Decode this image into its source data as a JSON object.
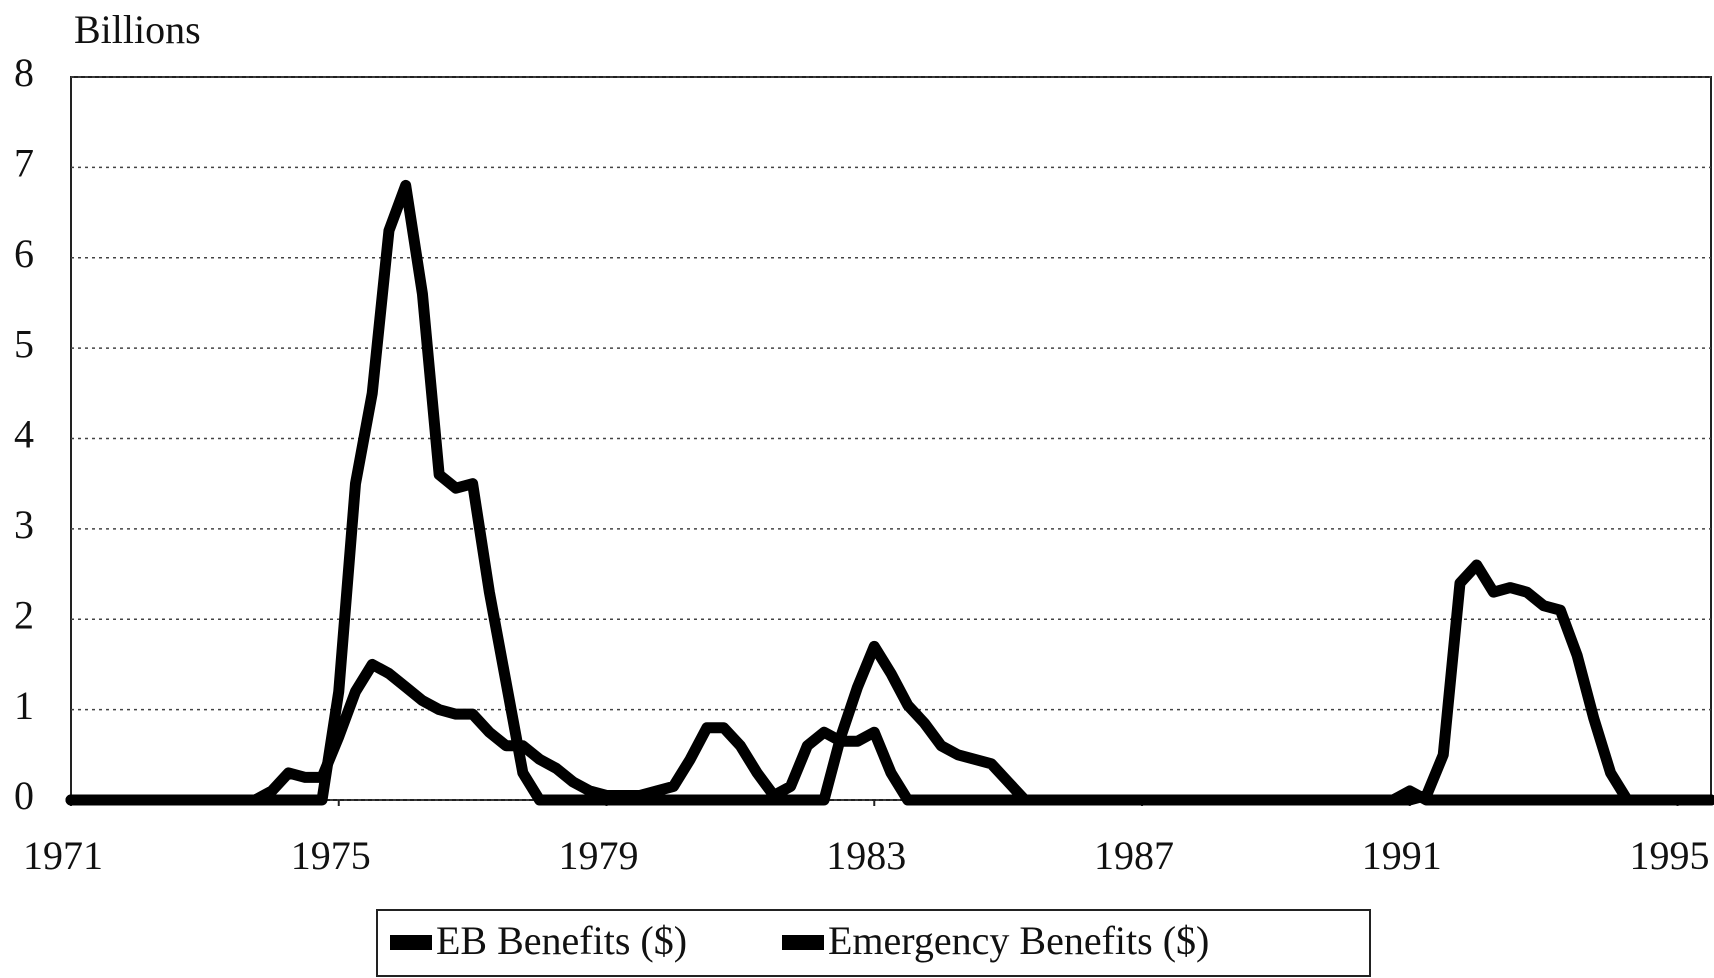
{
  "chart_data": {
    "type": "line",
    "y_axis_label": "Billions",
    "x": [
      1971,
      1971.25,
      1971.5,
      1971.75,
      1972,
      1972.25,
      1972.5,
      1972.75,
      1973,
      1973.25,
      1973.5,
      1973.75,
      1974,
      1974.25,
      1974.5,
      1974.75,
      1975,
      1975.25,
      1975.5,
      1975.75,
      1976,
      1976.25,
      1976.5,
      1976.75,
      1977,
      1977.25,
      1977.5,
      1977.75,
      1978,
      1978.25,
      1978.5,
      1978.75,
      1979,
      1979.25,
      1979.5,
      1979.75,
      1980,
      1980.25,
      1980.5,
      1980.75,
      1981,
      1981.25,
      1981.5,
      1981.75,
      1982,
      1982.25,
      1982.5,
      1982.75,
      1983,
      1983.25,
      1983.5,
      1983.75,
      1984,
      1984.25,
      1984.5,
      1984.75,
      1985,
      1985.25,
      1985.5,
      1985.75,
      1986,
      1986.25,
      1986.5,
      1986.75,
      1987,
      1987.25,
      1987.5,
      1987.75,
      1988,
      1988.25,
      1988.5,
      1988.75,
      1989,
      1989.25,
      1989.5,
      1989.75,
      1990,
      1990.25,
      1990.5,
      1990.75,
      1991,
      1991.25,
      1991.5,
      1991.75,
      1992,
      1992.25,
      1992.5,
      1992.75,
      1993,
      1993.25,
      1993.5,
      1993.75,
      1994,
      1994.25,
      1994.5,
      1994.75,
      1995,
      1995.25,
      1995.5
    ],
    "series": [
      {
        "name": "EB Benefits ($)",
        "color": "#000000",
        "values": [
          0,
          0,
          0,
          0,
          0,
          0,
          0,
          0,
          0,
          0,
          0,
          0,
          0.1,
          0.3,
          0.25,
          0.25,
          0.7,
          1.2,
          1.5,
          1.4,
          1.25,
          1.1,
          1.0,
          0.95,
          0.95,
          0.75,
          0.6,
          0.6,
          0.45,
          0.35,
          0.2,
          0.1,
          0.05,
          0.05,
          0.05,
          0.1,
          0.15,
          0.45,
          0.8,
          0.8,
          0.6,
          0.3,
          0.05,
          0.15,
          0.6,
          0.75,
          0.65,
          0.65,
          0.75,
          0.3,
          0,
          0,
          0,
          0,
          0,
          0,
          0,
          0,
          0,
          0,
          0,
          0,
          0,
          0,
          0,
          0,
          0,
          0,
          0,
          0,
          0,
          0,
          0,
          0,
          0,
          0,
          0,
          0,
          0,
          0,
          0.1,
          0,
          0,
          0,
          0,
          0,
          0,
          0,
          0,
          0,
          0,
          0,
          0,
          0,
          0,
          0,
          0,
          0,
          0
        ]
      },
      {
        "name": "Emergency Benefits ($)",
        "color": "#000000",
        "values": [
          0,
          0,
          0,
          0,
          0,
          0,
          0,
          0,
          0,
          0,
          0,
          0,
          0,
          0,
          0,
          0,
          1.2,
          3.5,
          4.5,
          6.3,
          6.8,
          5.6,
          3.6,
          3.45,
          3.5,
          2.3,
          1.3,
          0.3,
          0,
          0,
          0,
          0,
          0,
          0,
          0,
          0,
          0,
          0,
          0,
          0,
          0,
          0,
          0,
          0,
          0,
          0,
          0.7,
          1.25,
          1.7,
          1.4,
          1.05,
          0.85,
          0.6,
          0.5,
          0.45,
          0.4,
          0.2,
          0,
          0,
          0,
          0,
          0,
          0,
          0,
          0,
          0,
          0,
          0,
          0,
          0,
          0,
          0,
          0,
          0,
          0,
          0,
          0,
          0,
          0,
          0,
          0,
          0.05,
          0.5,
          2.4,
          2.6,
          2.3,
          2.35,
          2.3,
          2.15,
          2.1,
          1.6,
          0.9,
          0.3,
          0,
          0,
          0,
          0,
          0,
          0
        ]
      }
    ],
    "xlim": [
      1971,
      1995.5
    ],
    "xticks": [
      1971,
      1975,
      1979,
      1983,
      1987,
      1991,
      1995
    ],
    "ylim": [
      0,
      8
    ],
    "yticks": [
      0,
      1,
      2,
      3,
      4,
      5,
      6,
      7,
      8
    ],
    "grid": true,
    "legend": "bottom"
  }
}
